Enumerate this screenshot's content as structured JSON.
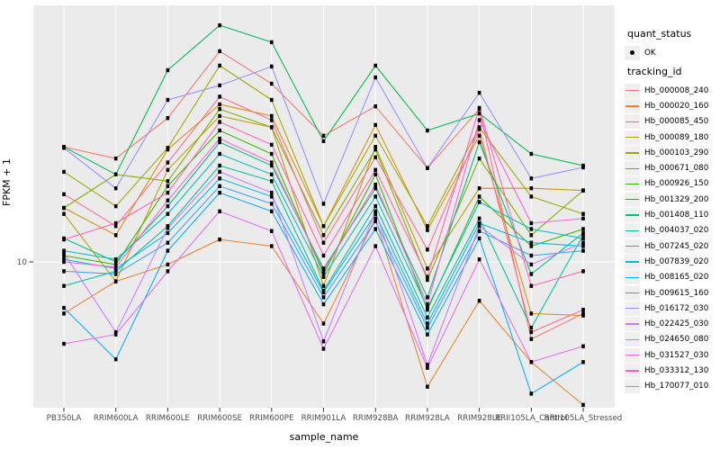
{
  "figure": {
    "x_axis_title": "sample_name",
    "y_axis_title": "FPKM + 1",
    "y_tick_label": "10",
    "legend_quant_title": "quant_status",
    "legend_quant_items": [
      {
        "label": "OK"
      }
    ],
    "legend_tracking_title": "tracking_id",
    "panel_bg": "#EBEBEB",
    "grid_color": "#FFFFFF",
    "tick_color": "#333333",
    "tick_label_color": "#4D4D4D",
    "point_color": "#000000"
  },
  "chart_data": {
    "type": "line",
    "title": "",
    "xlabel": "sample_name",
    "ylabel": "FPKM + 1",
    "y_scale": "log10",
    "y_ticks": [
      10
    ],
    "ylim_approx": [
      3,
      65
    ],
    "grid": "major-only",
    "legend_position": "right",
    "quant_status_all_points": "OK",
    "categories": [
      "PB350LA",
      "RRIM600LA",
      "RRIM600LE",
      "RRIM600SE",
      "RRIM600PE",
      "RRIM901LA",
      "RRIM928BA",
      "RRIM928LA",
      "RRIM928LE",
      "RRII105LA_Control",
      "RRII105LA_Stressed"
    ],
    "series": [
      {
        "name": "Hb_000008_240",
        "color": "#F8766D",
        "values": [
          24.4,
          22.3,
          30.5,
          51.2,
          39.8,
          26.6,
          33.4,
          20.7,
          32.7,
          5.5,
          6.7
        ]
      },
      {
        "name": "Hb_000020_160",
        "color": "#EA8331",
        "values": [
          6.7,
          8.6,
          9.8,
          11.9,
          11.3,
          6.2,
          14.0,
          3.8,
          7.4,
          4.6,
          3.3
        ]
      },
      {
        "name": "Hb_000085_450",
        "color": "#D89000",
        "values": [
          15.2,
          12.3,
          23.9,
          33.9,
          31.0,
          13.2,
          28.9,
          12.8,
          26.6,
          6.7,
          6.6
        ]
      },
      {
        "name": "Hb_000089_180",
        "color": "#C09B00",
        "values": [
          14.5,
          8.6,
          20.4,
          31.0,
          28.4,
          8.3,
          24.4,
          9.5,
          17.7,
          17.7,
          17.4
        ]
      },
      {
        "name": "Hb_000103_290",
        "color": "#A3A500",
        "values": [
          20.1,
          15.4,
          24.2,
          45.8,
          35.1,
          13.2,
          26.6,
          13.2,
          28.4,
          16.6,
          14.5
        ]
      },
      {
        "name": "Hb_000671_080",
        "color": "#7CAE00",
        "values": [
          15.2,
          19.7,
          18.7,
          32.7,
          28.4,
          12.3,
          23.9,
          8.7,
          22.3,
          12.3,
          17.4
        ]
      },
      {
        "name": "Hb_000926_150",
        "color": "#39B600",
        "values": [
          10.5,
          9.8,
          18.0,
          27.7,
          23.1,
          9.1,
          19.7,
          6.9,
          16.6,
          11.3,
          12.9
        ]
      },
      {
        "name": "Hb_001329_200",
        "color": "#00BB4E",
        "values": [
          24.4,
          19.7,
          44.2,
          62.6,
          54.9,
          25.5,
          45.8,
          27.7,
          31.6,
          23.1,
          21.1
        ]
      },
      {
        "name": "Hb_001408_110",
        "color": "#00BF7D",
        "values": [
          12.0,
          10.0,
          15.4,
          25.3,
          21.1,
          9.5,
          17.7,
          7.6,
          25.3,
          9.1,
          12.5
        ]
      },
      {
        "name": "Hb_004037_020",
        "color": "#00C1A3",
        "values": [
          8.3,
          9.3,
          13.2,
          21.1,
          18.7,
          8.0,
          15.4,
          6.5,
          14.0,
          6.0,
          12.3
        ]
      },
      {
        "name": "Hb_007245_020",
        "color": "#00BFC4",
        "values": [
          10.9,
          10.2,
          14.5,
          23.1,
          19.7,
          8.9,
          16.6,
          7.0,
          15.9,
          12.9,
          12.0
        ]
      },
      {
        "name": "Hb_007839_020",
        "color": "#00BAE0",
        "values": [
          10.2,
          9.5,
          12.5,
          19.1,
          16.6,
          7.9,
          14.5,
          6.2,
          13.5,
          11.6,
          11.3
        ]
      },
      {
        "name": "Hb_008165_020",
        "color": "#00B0F6",
        "values": [
          7.0,
          4.7,
          10.9,
          17.1,
          14.8,
          7.2,
          12.9,
          5.7,
          12.0,
          3.6,
          4.6
        ]
      },
      {
        "name": "Hb_009615_160",
        "color": "#35A2FF",
        "values": [
          9.3,
          9.1,
          11.6,
          18.0,
          15.7,
          7.6,
          13.7,
          6.0,
          12.7,
          10.5,
          10.9
        ]
      },
      {
        "name": "Hb_016172_030",
        "color": "#9590FF",
        "values": [
          24.2,
          17.7,
          35.1,
          39.3,
          45.5,
          15.7,
          41.8,
          20.7,
          37.1,
          19.1,
          20.8
        ]
      },
      {
        "name": "Hb_022425_030",
        "color": "#C77CFF",
        "values": [
          10.7,
          5.8,
          13.0,
          20.1,
          17.1,
          5.4,
          14.8,
          4.5,
          13.2,
          9.8,
          11.6
        ]
      },
      {
        "name": "Hb_024650_080",
        "color": "#E76BF3",
        "values": [
          5.3,
          5.7,
          9.3,
          14.8,
          12.7,
          5.1,
          11.3,
          4.4,
          10.2,
          4.6,
          5.2
        ]
      },
      {
        "name": "Hb_031527_030",
        "color": "#FA62DB",
        "values": [
          10.0,
          9.6,
          16.1,
          26.0,
          21.6,
          9.3,
          18.2,
          7.2,
          30.0,
          13.5,
          14.0
        ]
      },
      {
        "name": "Hb_033312_130",
        "color": "#FF62BC",
        "values": [
          11.9,
          13.5,
          17.1,
          29.6,
          24.8,
          10.5,
          20.4,
          8.9,
          33.0,
          8.3,
          9.3
        ]
      },
      {
        "name": "Hb_170077_010",
        "color": "#FF6A98",
        "values": [
          16.9,
          13.2,
          21.6,
          36.0,
          30.0,
          11.6,
          22.5,
          11.0,
          28.0,
          5.8,
          6.9
        ]
      }
    ]
  }
}
